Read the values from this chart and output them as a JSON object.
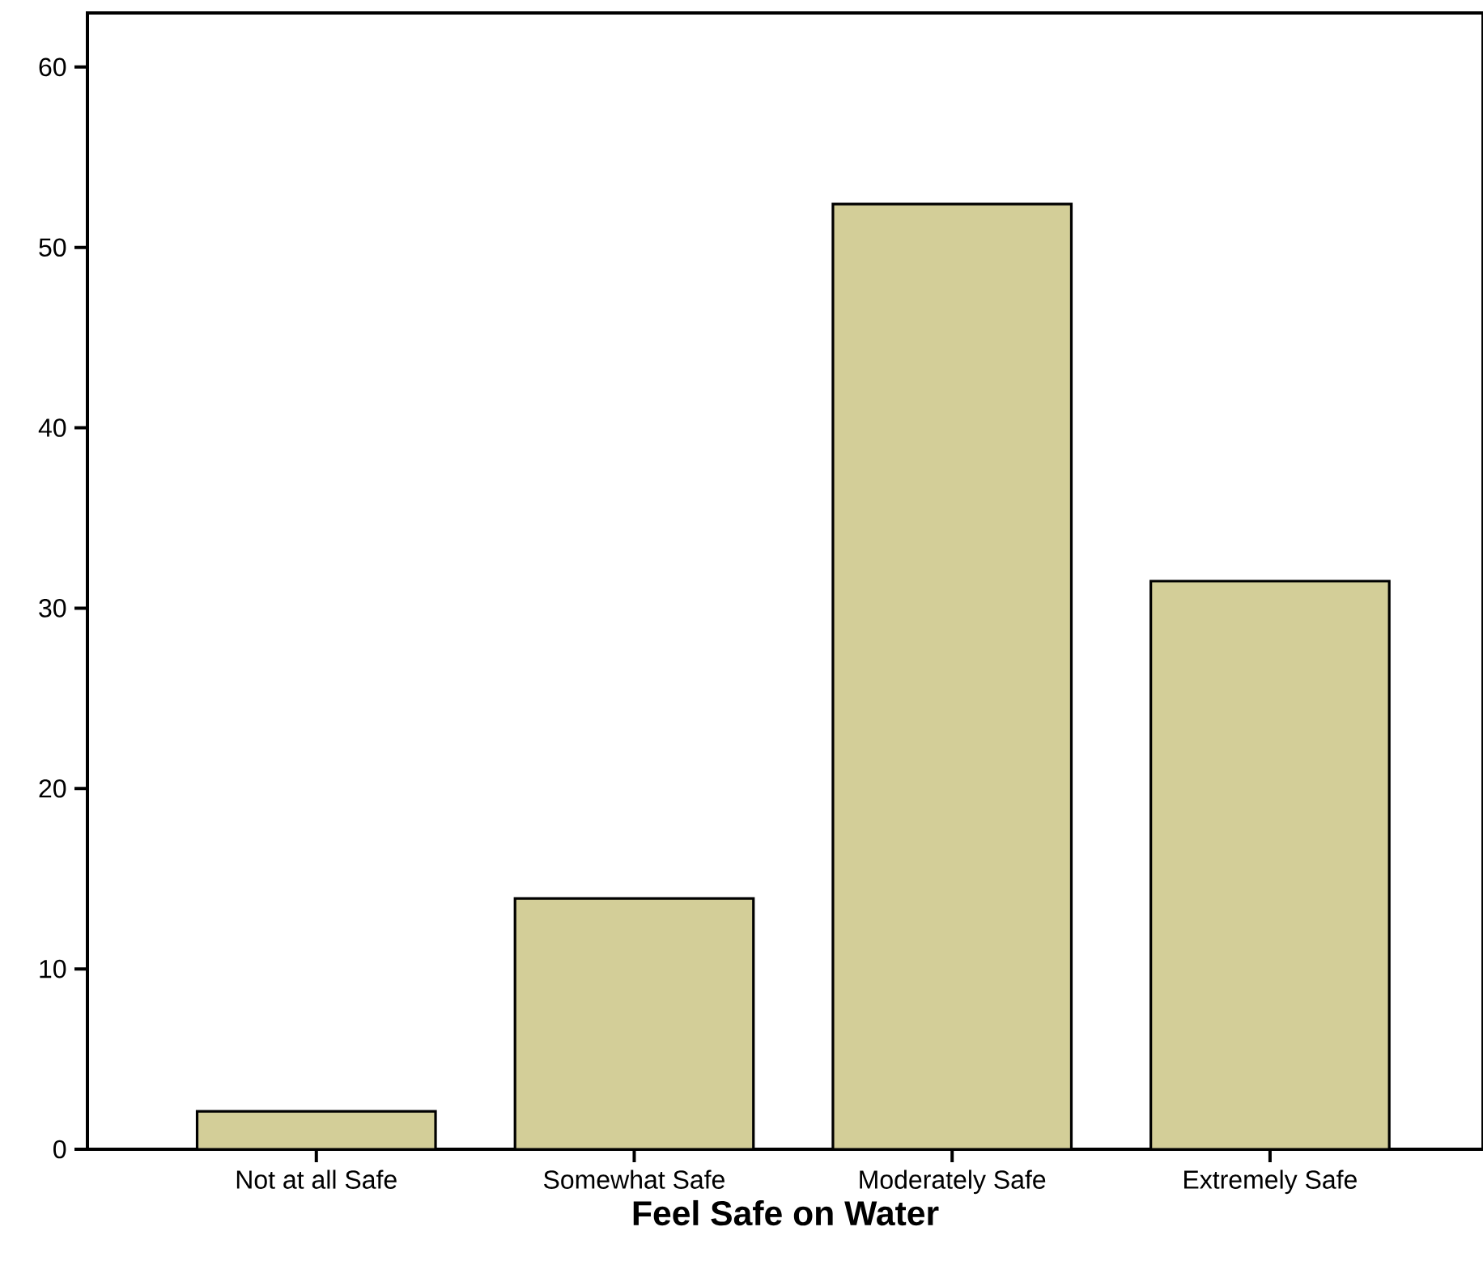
{
  "chart_data": {
    "type": "bar",
    "xlabel": "Feel Safe on Water",
    "categories": [
      "Not at all Safe",
      "Somewhat Safe",
      "Moderately Safe",
      "Extremely Safe"
    ],
    "values": [
      2.1,
      13.9,
      52.4,
      31.5
    ],
    "color": "#d3ce98",
    "ylim": [
      0,
      63
    ],
    "yticks": [
      0,
      10,
      20,
      30,
      40,
      50,
      60
    ]
  }
}
